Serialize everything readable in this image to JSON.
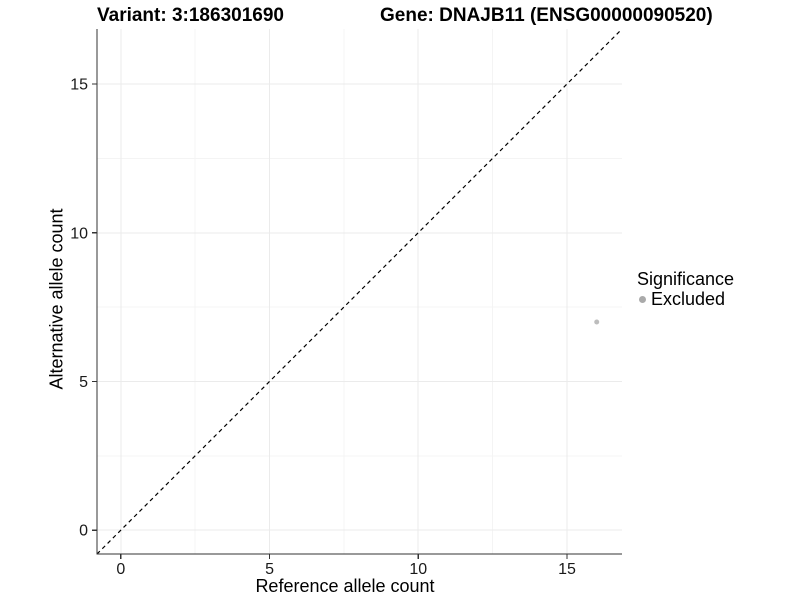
{
  "chart_data": {
    "type": "scatter",
    "title_left": "Variant: 3:186301690",
    "title_right": "Gene: DNAJB11 (ENSG00000090520)",
    "xlabel": "Reference allele count",
    "ylabel": "Alternative allele count",
    "xlim": [
      -0.8,
      16.85
    ],
    "ylim": [
      -0.8,
      16.85
    ],
    "xticks": [
      0,
      5,
      10,
      15
    ],
    "yticks": [
      0,
      5,
      10,
      15
    ],
    "xticks_minor": [
      2.5,
      7.5,
      12.5
    ],
    "yticks_minor": [
      2.5,
      7.5,
      12.5
    ],
    "grid": true,
    "points": [
      {
        "x": 16,
        "y": 7,
        "series": "Excluded"
      }
    ],
    "reference_line": {
      "kind": "abline",
      "intercept": 0,
      "slope": 1,
      "style": "dashed",
      "color": "#000000"
    },
    "legend": {
      "title": "Significance",
      "position": "right",
      "items": [
        {
          "label": "Excluded",
          "color": "#aaaaaa"
        }
      ]
    },
    "colors": {
      "point": "#bdbdbd",
      "grid_major": "#ebebeb",
      "grid_minor": "#f4f4f4",
      "axis_line": "#333333",
      "tick_text": "#1a1a1a"
    }
  }
}
